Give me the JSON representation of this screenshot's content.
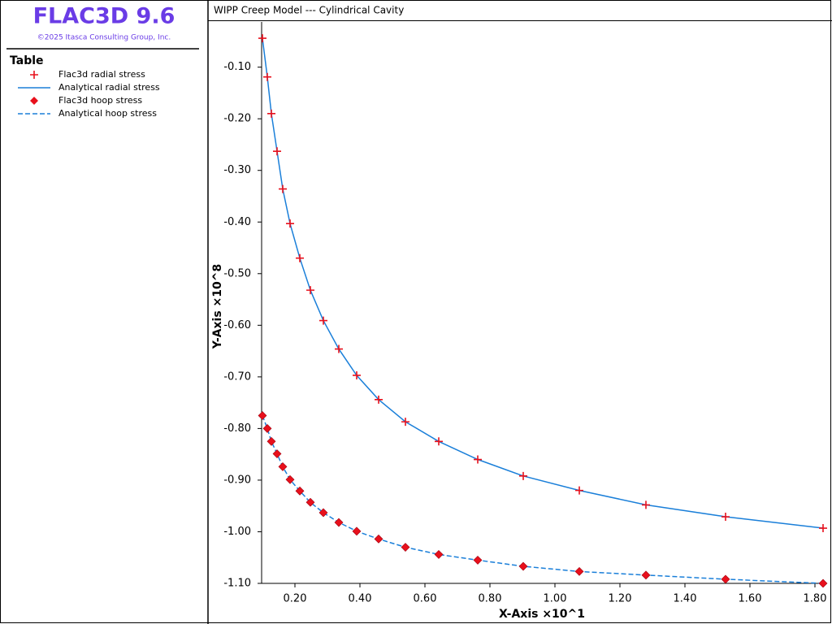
{
  "app": {
    "title": "FLAC3D 9.6",
    "copyright": "©2025 Itasca Consulting Group, Inc."
  },
  "chart_data": {
    "type": "line",
    "title": "WIPP Creep Model --- Cylindrical Cavity",
    "legend_title": "Table",
    "x_label": "X-Axis ×10^1",
    "y_label": "Y-Axis ×10^8",
    "x": [
      0.1,
      0.115,
      0.1275,
      0.145,
      0.1625,
      0.185,
      0.215,
      0.2475,
      0.2875,
      0.335,
      0.39,
      0.4575,
      0.54,
      0.6425,
      0.7625,
      0.9025,
      1.075,
      1.28,
      1.525,
      1.825
    ],
    "series": [
      {
        "name": "Flac3d radial stress",
        "color": "#e8101c",
        "mark": "plus",
        "values": [
          -0.044,
          -0.119,
          -0.19,
          -0.263,
          -0.336,
          -0.403,
          -0.47,
          -0.532,
          -0.591,
          -0.646,
          -0.697,
          -0.744,
          -0.787,
          -0.825,
          -0.86,
          -0.892,
          -0.92,
          -0.948,
          -0.971,
          -0.993
        ]
      },
      {
        "name": "Analytical radial stress",
        "color": "#1a7fd9",
        "mark": "solid",
        "values": [
          -0.044,
          -0.119,
          -0.19,
          -0.263,
          -0.336,
          -0.403,
          -0.47,
          -0.532,
          -0.591,
          -0.646,
          -0.697,
          -0.744,
          -0.787,
          -0.825,
          -0.86,
          -0.892,
          -0.92,
          -0.948,
          -0.971,
          -0.993
        ]
      },
      {
        "name": "Flac3d hoop stress",
        "color": "#e8101c",
        "mark": "diamond",
        "values": [
          -0.775,
          -0.8,
          -0.825,
          -0.849,
          -0.874,
          -0.899,
          -0.921,
          -0.943,
          -0.963,
          -0.982,
          -0.999,
          -1.014,
          -1.03,
          -1.044,
          -1.055,
          -1.067,
          -1.077,
          -1.084,
          -1.092,
          -1.1
        ]
      },
      {
        "name": "Analytical hoop stress",
        "color": "#1a7fd9",
        "mark": "dashed",
        "values": [
          -0.775,
          -0.8,
          -0.825,
          -0.849,
          -0.874,
          -0.899,
          -0.921,
          -0.943,
          -0.963,
          -0.982,
          -0.999,
          -1.014,
          -1.03,
          -1.044,
          -1.055,
          -1.067,
          -1.077,
          -1.084,
          -1.092,
          -1.1
        ]
      }
    ],
    "xlim": [
      0.1,
      1.84
    ],
    "ylim": [
      -1.1,
      -0.025
    ],
    "xticks": [
      {
        "value": 0.2,
        "label": "0.20"
      },
      {
        "value": 0.4,
        "label": "0.40"
      },
      {
        "value": 0.6,
        "label": "0.60"
      },
      {
        "value": 0.8,
        "label": "0.80"
      },
      {
        "value": 1.0,
        "label": "1.00"
      },
      {
        "value": 1.2,
        "label": "1.20"
      },
      {
        "value": 1.4,
        "label": "1.40"
      },
      {
        "value": 1.6,
        "label": "1.60"
      },
      {
        "value": 1.8,
        "label": "1.80"
      }
    ],
    "yticks": [
      {
        "value": -0.1,
        "label": "-0.10"
      },
      {
        "value": -0.2,
        "label": "-0.20"
      },
      {
        "value": -0.3,
        "label": "-0.30"
      },
      {
        "value": -0.4,
        "label": "-0.40"
      },
      {
        "value": -0.5,
        "label": "-0.50"
      },
      {
        "value": -0.6,
        "label": "-0.60"
      },
      {
        "value": -0.7,
        "label": "-0.70"
      },
      {
        "value": -0.8,
        "label": "-0.80"
      },
      {
        "value": -0.9,
        "label": "-0.90"
      },
      {
        "value": -1.0,
        "label": "-1.00"
      },
      {
        "value": -1.1,
        "label": "-1.10"
      }
    ],
    "grid": false
  }
}
